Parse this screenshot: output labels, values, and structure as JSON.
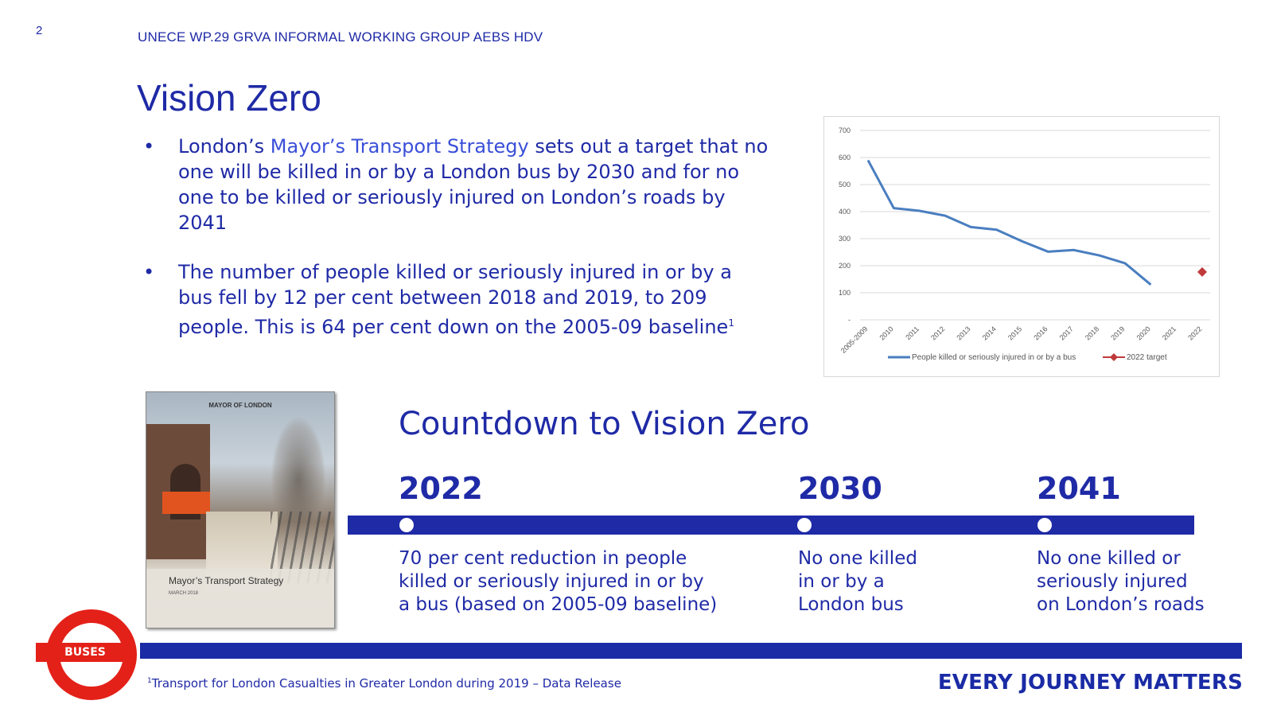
{
  "page_number": "2",
  "header": "UNECE WP.29 GRVA INFORMAL WORKING GROUP AEBS HDV",
  "title": "Vision Zero",
  "bullets": [
    {
      "pre": "London’s ",
      "link": "Mayor’s Transport Strategy",
      "post": " sets out a target that no one will be killed in or by a London bus by 2030 and for no one to be killed or seriously injured on London’s roads by 2041"
    },
    {
      "pre": "The number of people killed or seriously injured in or by a bus fell by 12 per cent between 2018 and 2019, to 209 people. This is 64 per cent down on the 2005-09 baseline",
      "sup": "1"
    }
  ],
  "bullet_glyph": "•",
  "chart_data": {
    "type": "line",
    "categories": [
      "2005-2009",
      "2010",
      "2011",
      "2012",
      "2013",
      "2014",
      "2015",
      "2016",
      "2017",
      "2018",
      "2019",
      "2020",
      "2021",
      "2022"
    ],
    "y_ticks": [
      "700",
      "600",
      "500",
      "400",
      "300",
      "200",
      "100",
      "-"
    ],
    "ylim": [
      0,
      700
    ],
    "grid": true,
    "legend_position": "bottom",
    "series": [
      {
        "name": "People killed or seriously injured in or by a bus",
        "color": "#4a7ec0",
        "values": [
          590,
          413,
          403,
          385,
          343,
          333,
          290,
          252,
          258,
          238,
          209,
          130,
          null,
          null
        ]
      },
      {
        "name": "2022 target",
        "color": "#c0393b",
        "marker": "diamond",
        "values": [
          null,
          null,
          null,
          null,
          null,
          null,
          null,
          null,
          null,
          null,
          null,
          null,
          null,
          177
        ]
      }
    ]
  },
  "cover": {
    "org": "MAYOR OF LONDON",
    "title": "Mayor’s Transport Strategy",
    "date": "MARCH 2018"
  },
  "countdown": {
    "title": "Countdown to Vision Zero",
    "milestones": [
      {
        "year": "2022",
        "lines": [
          "70 per cent reduction in people",
          "killed or seriously injured in or by",
          "a bus (based on 2005-09 baseline)"
        ]
      },
      {
        "year": "2030",
        "lines": [
          "No one killed",
          "in or by a",
          "London bus"
        ]
      },
      {
        "year": "2041",
        "lines": [
          "No one killed or",
          "seriously injured",
          "on London’s roads"
        ]
      }
    ]
  },
  "roundel_label": "BUSES",
  "footnote": {
    "sup": "1",
    "text": "Transport for London  Casualties in Greater London during 2019 – Data Release"
  },
  "slogan": "EVERY JOURNEY MATTERS",
  "colors": {
    "brand_blue": "#1f2aa6",
    "roundel_red": "#e32119"
  }
}
